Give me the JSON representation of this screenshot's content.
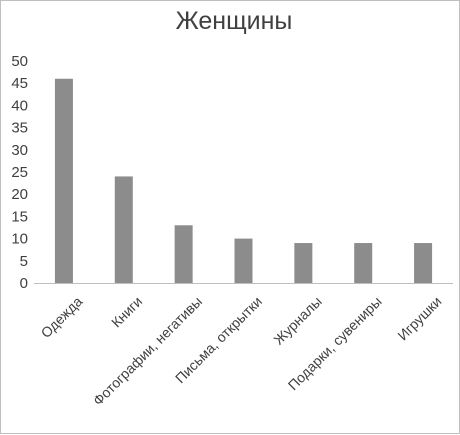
{
  "chart_data": {
    "type": "bar",
    "title": "Женщины",
    "categories": [
      "Одежда",
      "Книги",
      "Фотографии, негативы",
      "Письма, открытки",
      "Журналы",
      "Подарки, сувениры",
      "Игрушки"
    ],
    "values": [
      46,
      24,
      13,
      10,
      9,
      9,
      9
    ],
    "ylim": [
      0,
      50
    ],
    "yticks": [
      0,
      5,
      10,
      15,
      20,
      25,
      30,
      35,
      40,
      45,
      50
    ],
    "grid": false,
    "bar_color": "#8c8c8c",
    "axis_color": "#bfbfbf",
    "text_color": "#404040"
  }
}
